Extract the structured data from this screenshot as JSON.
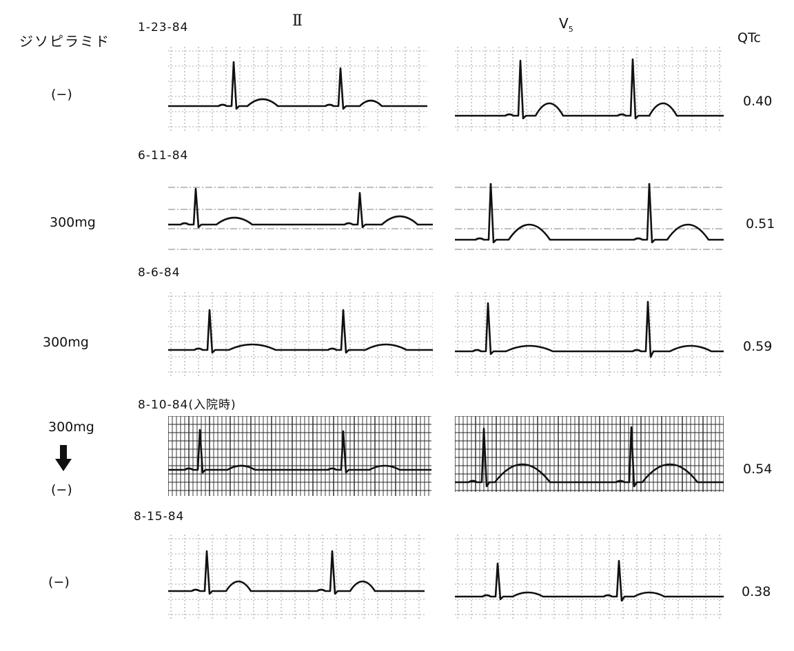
{
  "header": {
    "drug_label": "ジソピラミド",
    "lead_ii": "Ⅱ",
    "lead_v5_base": "V",
    "lead_v5_sub": "5",
    "qtc_label": "QTc"
  },
  "rows": [
    {
      "date": "1-23-84",
      "dose": "(−)",
      "dose_after": "",
      "qtc": "0.40",
      "grid": "sparse"
    },
    {
      "date": "6-11-84",
      "dose": "300mg",
      "dose_after": "",
      "qtc": "0.51",
      "grid": "lines"
    },
    {
      "date": "8-6-84",
      "dose": "300mg",
      "dose_after": "",
      "qtc": "0.59",
      "grid": "sparse"
    },
    {
      "date": "8-10-84(入院時)",
      "dose": "300mg",
      "dose_after": "(−)",
      "qtc": "0.54",
      "grid": "dense"
    },
    {
      "date": "8-15-84",
      "dose": "(−)",
      "dose_after": "",
      "qtc": "0.38",
      "grid": "sparse"
    }
  ],
  "colors": {
    "trace": "#111111",
    "grid": "#555555"
  },
  "icons": {
    "dose_change": "arrow-down-icon"
  }
}
